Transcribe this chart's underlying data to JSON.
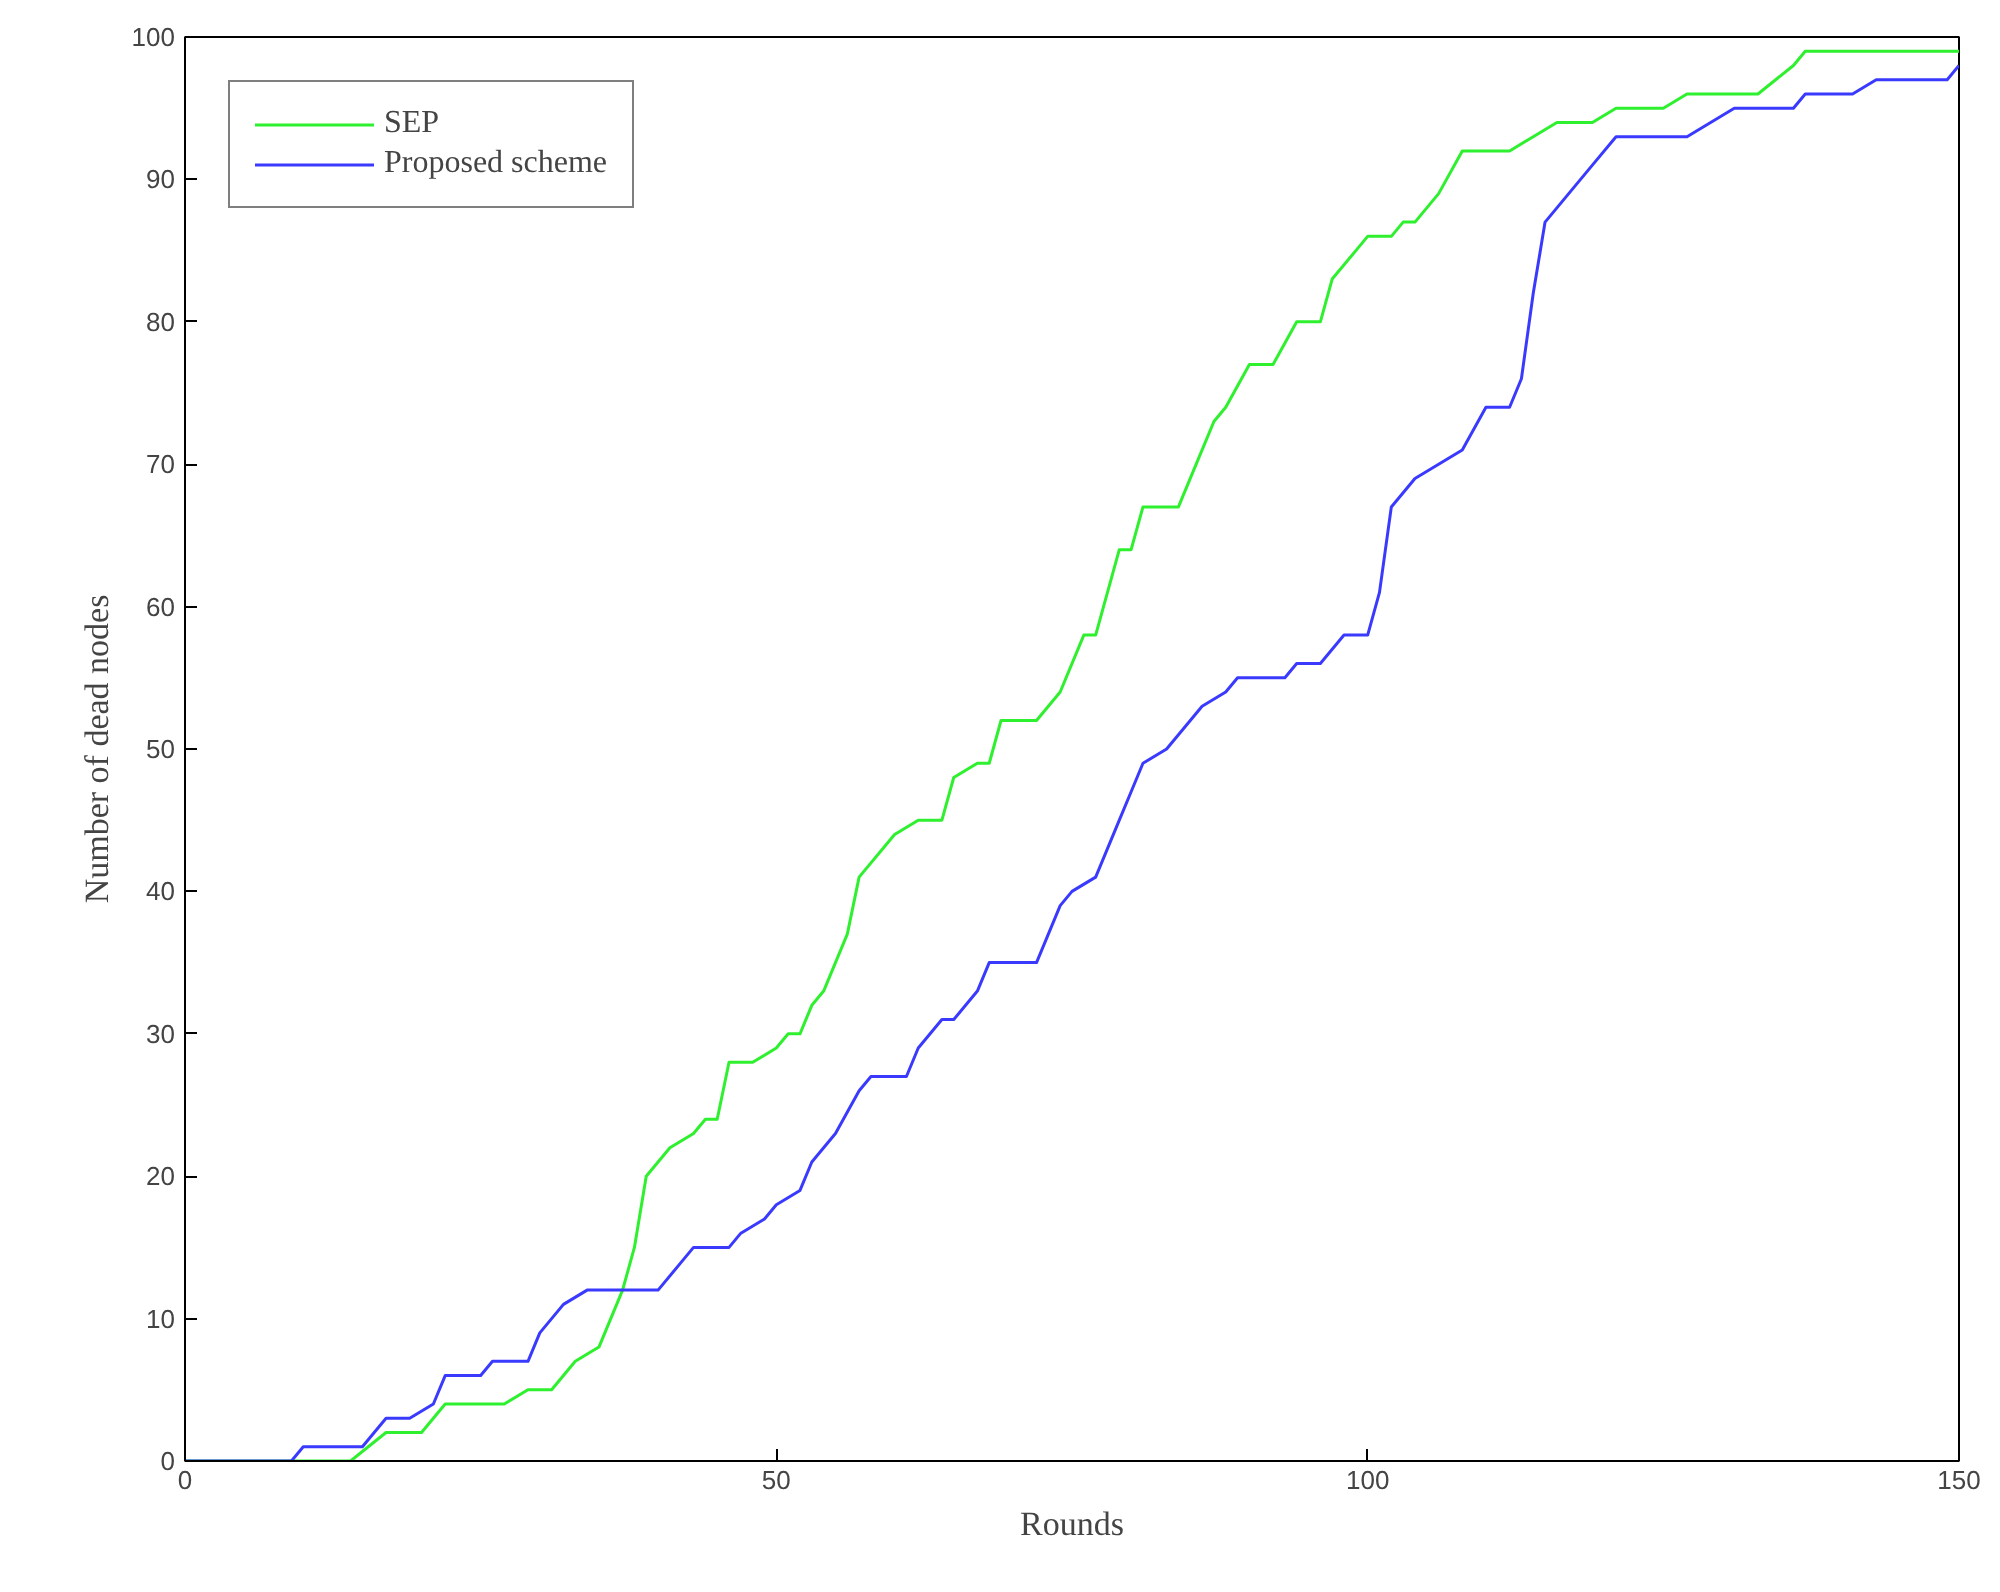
{
  "chart_data": {
    "type": "line",
    "xlabel": "Rounds",
    "ylabel": "Number of dead nodes",
    "xlim": [
      0,
      150
    ],
    "ylim": [
      0,
      100
    ],
    "xticks": [
      0,
      50,
      100,
      150
    ],
    "yticks": [
      0,
      10,
      20,
      30,
      40,
      50,
      60,
      70,
      80,
      90,
      100
    ],
    "grid": false,
    "legend": "top left",
    "marker": "none",
    "line_style": "solid",
    "series": [
      {
        "name": "SEP",
        "color": "#2ef02e",
        "x": [
          0,
          14,
          17,
          20,
          22,
          27,
          29,
          31,
          33,
          35,
          37,
          38,
          39,
          41,
          43,
          44,
          45,
          46,
          48,
          50,
          51,
          52,
          53,
          54,
          56,
          57,
          60,
          62,
          64,
          65,
          67,
          68,
          69,
          72,
          74,
          76,
          77,
          78,
          79,
          80,
          81,
          84,
          85,
          87,
          88,
          90,
          92,
          94,
          96,
          97,
          99,
          100,
          102,
          103,
          104,
          106,
          108,
          112,
          114,
          116,
          119,
          121,
          125,
          127,
          133,
          136,
          137,
          150
        ],
        "values": [
          0,
          0,
          2,
          2,
          4,
          4,
          5,
          5,
          7,
          8,
          12,
          15,
          20,
          22,
          23,
          24,
          24,
          28,
          28,
          29,
          30,
          30,
          32,
          33,
          37,
          41,
          44,
          45,
          45,
          48,
          49,
          49,
          52,
          52,
          54,
          58,
          58,
          61,
          64,
          64,
          67,
          67,
          69,
          73,
          74,
          77,
          77,
          80,
          80,
          83,
          85,
          86,
          86,
          87,
          87,
          89,
          92,
          92,
          93,
          94,
          94,
          95,
          95,
          96,
          96,
          98,
          99,
          99
        ]
      },
      {
        "name": "Proposed scheme",
        "color": "#3a3aff",
        "x": [
          0,
          9,
          10,
          15,
          17,
          19,
          21,
          22,
          25,
          26,
          29,
          30,
          31,
          32,
          34,
          40,
          42,
          43,
          46,
          47,
          49,
          50,
          52,
          53,
          55,
          57,
          58,
          61,
          62,
          64,
          65,
          67,
          68,
          72,
          73,
          74,
          75,
          77,
          78,
          79,
          80,
          81,
          83,
          84,
          85,
          86,
          88,
          89,
          93,
          94,
          96,
          98,
          100,
          101,
          102,
          104,
          106,
          108,
          110,
          112,
          113,
          114,
          115,
          117,
          119,
          121,
          127,
          129,
          131,
          136,
          137,
          141,
          143,
          149,
          150
        ],
        "values": [
          0,
          0,
          1,
          1,
          3,
          3,
          4,
          6,
          6,
          7,
          7,
          9,
          10,
          11,
          12,
          12,
          14,
          15,
          15,
          16,
          17,
          18,
          19,
          21,
          23,
          26,
          27,
          27,
          29,
          31,
          31,
          33,
          35,
          35,
          37,
          39,
          40,
          41,
          43,
          45,
          47,
          49,
          50,
          51,
          52,
          53,
          54,
          55,
          55,
          56,
          56,
          58,
          58,
          61,
          67,
          69,
          70,
          71,
          74,
          74,
          76,
          82,
          87,
          89,
          91,
          93,
          93,
          94,
          95,
          95,
          96,
          96,
          97,
          97,
          98
        ]
      }
    ]
  }
}
